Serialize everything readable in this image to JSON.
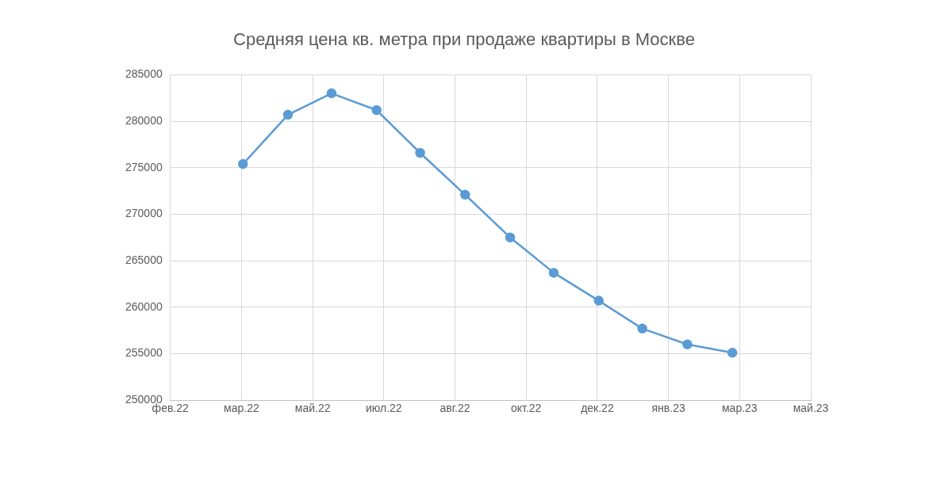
{
  "chart_data": {
    "type": "line",
    "title": "Средняя цена кв. метра при продаже квартиры в Москве",
    "x": [
      "2022-03-01",
      "2022-04-01",
      "2022-05-01",
      "2022-06-01",
      "2022-07-01",
      "2022-08-01",
      "2022-09-01",
      "2022-10-01",
      "2022-11-01",
      "2022-12-01",
      "2023-01-01",
      "2023-02-01"
    ],
    "series": [
      {
        "color": "#5b9bd5",
        "values": [
          275400,
          280700,
          283000,
          281200,
          276600,
          272100,
          267500,
          263700,
          260700,
          257700,
          256000,
          255100
        ]
      }
    ],
    "xlim": [
      "2022-01-10",
      "2023-03-27"
    ],
    "xticks": [
      {
        "value": "2022-01-10",
        "label": "фев.22"
      },
      {
        "value": "2022-02-28",
        "label": "мар.22"
      },
      {
        "value": "2022-04-18",
        "label": "май.22"
      },
      {
        "value": "2022-06-06",
        "label": "июл.22"
      },
      {
        "value": "2022-07-25",
        "label": "авг.22"
      },
      {
        "value": "2022-09-12",
        "label": "окт.22"
      },
      {
        "value": "2022-10-31",
        "label": "дек.22"
      },
      {
        "value": "2022-12-19",
        "label": "янв.23"
      },
      {
        "value": "2023-02-06",
        "label": "мар.23"
      },
      {
        "value": "2023-03-27",
        "label": "май.23"
      }
    ],
    "ylim": [
      250000,
      285000
    ],
    "yticks": [
      250000,
      255000,
      260000,
      265000,
      270000,
      275000,
      280000,
      285000
    ],
    "grid": true,
    "marker": "circle",
    "line_style": "solid",
    "legend": false
  }
}
